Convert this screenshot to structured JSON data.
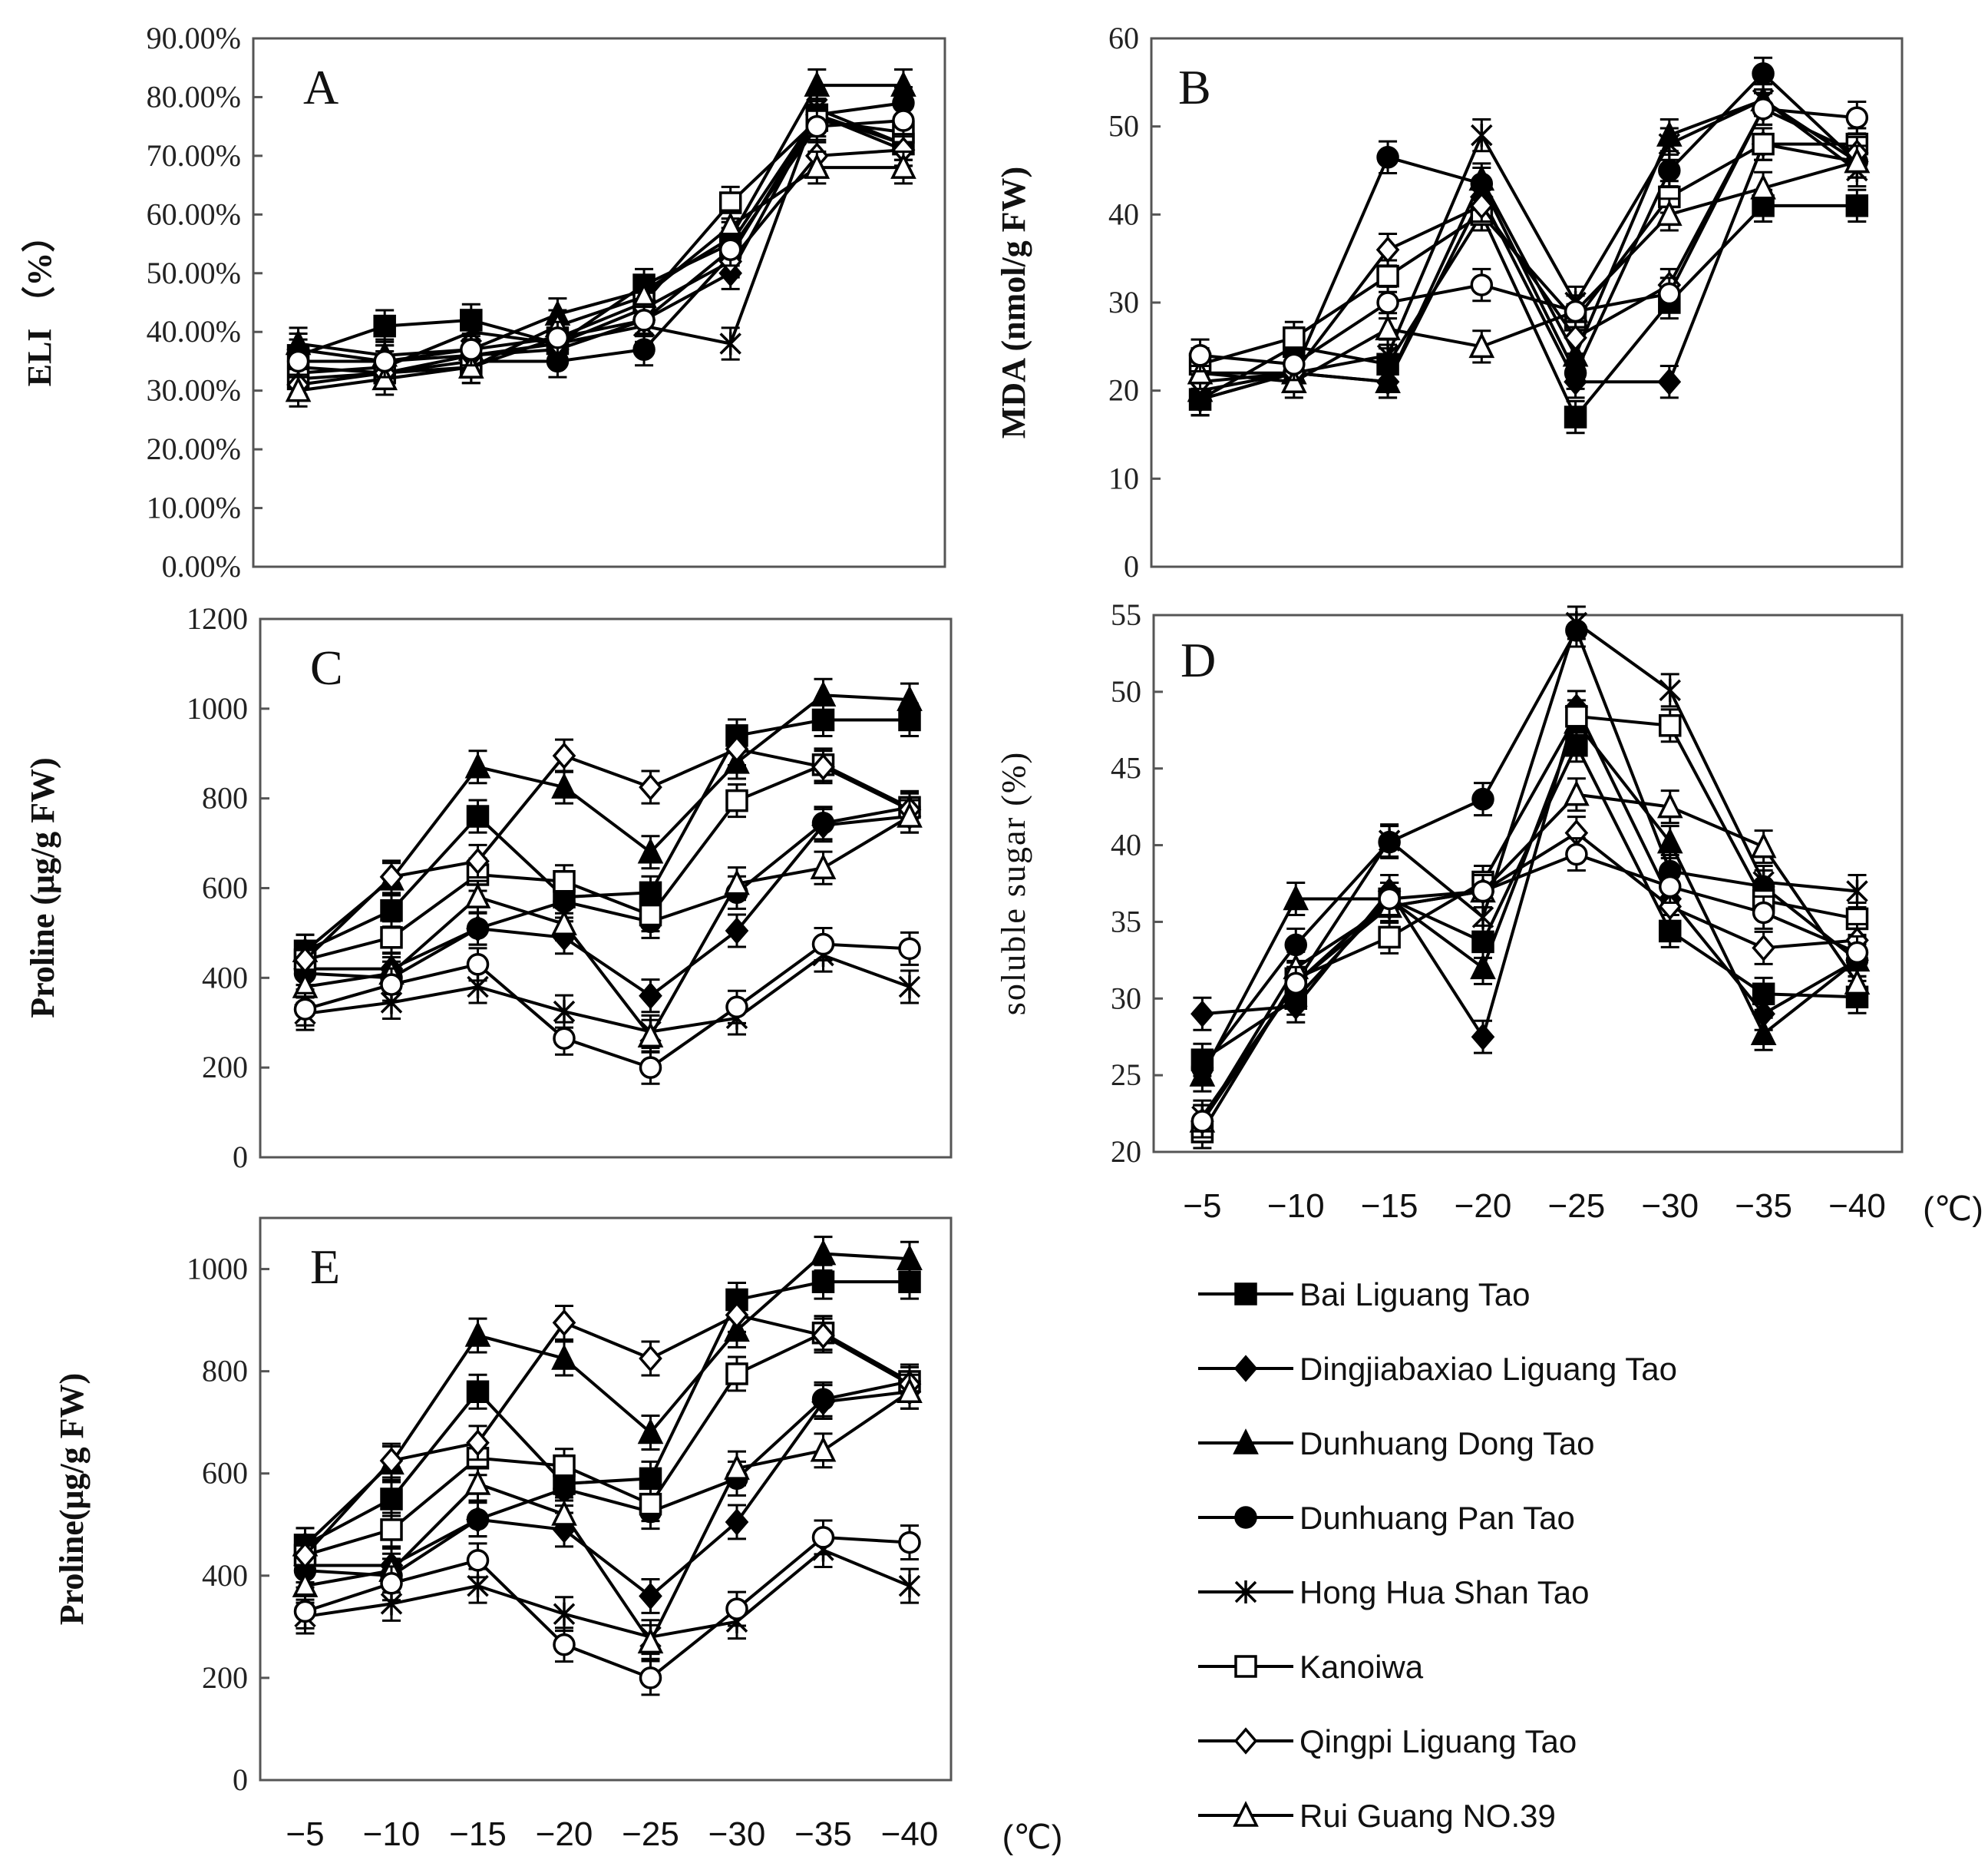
{
  "legend": [
    "Bai Liguang Tao",
    "Dingjiabaxiao Liguang Tao",
    "Dunhuang Dong Tao",
    "Dunhuang Pan Tao",
    "Hong Hua Shan Tao",
    "Kanoiwa",
    "Qingpi Liguang Tao",
    "Rui Guang NO.39"
  ],
  "x_unit": "(℃)",
  "chart_data": [
    {
      "panel": "A",
      "type": "line",
      "ylabel": "ELI （%）",
      "ylim": [
        0,
        90
      ],
      "x": [
        -5,
        -10,
        -15,
        -20,
        -25,
        -30,
        -35,
        -40
      ],
      "xtick_labels": [
        "−5",
        "−10",
        "−15",
        "−20",
        "−25",
        "−30",
        "−35",
        "−40"
      ],
      "yticks": [
        0,
        10,
        20,
        30,
        40,
        50,
        60,
        70,
        80,
        90
      ],
      "ytick_labels": [
        "0.00%",
        "10.00%",
        "20.00%",
        "30.00%",
        "40.00%",
        "50.00%",
        "60.00%",
        "70.00%",
        "80.00%",
        "90.00%"
      ],
      "series": [
        {
          "name": "Bai Liguang Tao",
          "marker": "square-filled",
          "values": [
            36,
            41,
            42,
            38,
            48,
            55,
            77,
            72
          ]
        },
        {
          "name": "Dingjiabaxiao Liguang Tao",
          "marker": "diamond-filled",
          "values": [
            37,
            35,
            36,
            37,
            42,
            50,
            77,
            71
          ]
        },
        {
          "name": "Dunhuang Dong Tao",
          "marker": "triangle-filled",
          "values": [
            38,
            36,
            37,
            43,
            47,
            56,
            82,
            82
          ]
        },
        {
          "name": "Dunhuang Pan Tao",
          "marker": "circle-filled",
          "values": [
            34,
            33,
            35,
            35,
            37,
            53,
            77,
            79
          ]
        },
        {
          "name": "Hong Hua Shan Tao",
          "marker": "star",
          "values": [
            33,
            34,
            40,
            38,
            41,
            38,
            78,
            72
          ]
        },
        {
          "name": "Kanoiwa",
          "marker": "square-open",
          "values": [
            32,
            33,
            34,
            39,
            45,
            62,
            76,
            74
          ]
        },
        {
          "name": "Qingpi Liguang Tao",
          "marker": "diamond-open",
          "values": [
            31,
            33,
            36,
            38,
            44,
            52,
            70,
            71
          ]
        },
        {
          "name": "Rui Guang NO.39",
          "marker": "triangle-open",
          "values": [
            30,
            32,
            34,
            41,
            46,
            58,
            68,
            68
          ]
        },
        {
          "name": "",
          "marker": "circle-open",
          "values": [
            35,
            35,
            37,
            39,
            42,
            54,
            75,
            76
          ]
        }
      ]
    },
    {
      "panel": "B",
      "type": "line",
      "ylabel": "MDA (nmol/g FW)",
      "ylim": [
        0,
        60
      ],
      "x": [
        -5,
        -10,
        -15,
        -20,
        -25,
        -30,
        -35,
        -40
      ],
      "yticks": [
        0,
        10,
        20,
        30,
        40,
        50,
        60
      ],
      "ytick_labels": [
        "0",
        "10",
        "20",
        "30",
        "40",
        "50",
        "60"
      ],
      "series": [
        {
          "name": "Bai Liguang Tao",
          "marker": "square-filled",
          "values": [
            19,
            25,
            23,
            40,
            17,
            30,
            41,
            41
          ]
        },
        {
          "name": "Dingjiabaxiao Liguang Tao",
          "marker": "diamond-filled",
          "values": [
            19,
            22,
            21,
            42,
            21,
            21,
            48,
            46
          ]
        },
        {
          "name": "Dunhuang Dong Tao",
          "marker": "triangle-filled",
          "values": [
            20,
            22,
            21,
            44,
            24,
            49,
            53,
            46
          ]
        },
        {
          "name": "Dunhuang Pan Tao",
          "marker": "circle-filled",
          "values": [
            19,
            22,
            46.5,
            43.5,
            22,
            45,
            56,
            46
          ]
        },
        {
          "name": "Hong Hua Shan Tao",
          "marker": "star",
          "values": [
            22,
            22,
            24,
            49,
            30,
            48,
            53,
            45
          ]
        },
        {
          "name": "Kanoiwa",
          "marker": "square-open",
          "values": [
            23,
            26,
            33,
            40,
            28,
            42,
            48,
            48
          ]
        },
        {
          "name": "Qingpi Liguang Tao",
          "marker": "diamond-open",
          "values": [
            21,
            22,
            36,
            41,
            26,
            32,
            52,
            47
          ]
        },
        {
          "name": "Rui Guang NO.39",
          "marker": "triangle-open",
          "values": [
            22,
            21,
            27,
            25,
            29,
            40,
            43,
            46
          ]
        },
        {
          "name": "",
          "marker": "circle-open",
          "values": [
            24,
            23,
            30,
            32,
            29,
            31,
            52,
            51
          ]
        }
      ]
    },
    {
      "panel": "C",
      "type": "line",
      "ylabel": "Proline (μg/g FW)",
      "ylim": [
        0,
        1200
      ],
      "x": [
        -5,
        -10,
        -15,
        -20,
        -25,
        -30,
        -35,
        -40
      ],
      "yticks": [
        0,
        200,
        400,
        600,
        800,
        1000,
        1200
      ],
      "ytick_labels": [
        "0",
        "200",
        "400",
        "600",
        "800",
        "1000",
        "1200"
      ],
      "series": [
        {
          "name": "Bai Liguang Tao",
          "marker": "square-filled",
          "values": [
            460,
            550,
            760,
            580,
            590,
            940,
            975,
            975
          ]
        },
        {
          "name": "Dingjiabaxiao Liguang Tao",
          "marker": "diamond-filled",
          "values": [
            420,
            420,
            510,
            490,
            360,
            505,
            740,
            760
          ]
        },
        {
          "name": "Dunhuang Dong Tao",
          "marker": "triangle-filled",
          "values": [
            460,
            620,
            870,
            825,
            680,
            880,
            1030,
            1020
          ]
        },
        {
          "name": "Dunhuang Pan Tao",
          "marker": "circle-filled",
          "values": [
            410,
            400,
            510,
            570,
            525,
            590,
            745,
            780
          ]
        },
        {
          "name": "Hong Hua Shan Tao",
          "marker": "star",
          "values": [
            320,
            345,
            380,
            325,
            280,
            310,
            450,
            380
          ]
        },
        {
          "name": "Kanoiwa",
          "marker": "square-open",
          "values": [
            440,
            490,
            630,
            615,
            540,
            795,
            875,
            780
          ]
        },
        {
          "name": "Qingpi Liguang Tao",
          "marker": "diamond-open",
          "values": [
            440,
            625,
            660,
            895,
            825,
            910,
            870,
            775
          ]
        },
        {
          "name": "Rui Guang NO.39",
          "marker": "triangle-open",
          "values": [
            380,
            410,
            580,
            520,
            270,
            610,
            645,
            760
          ]
        },
        {
          "name": "",
          "marker": "circle-open",
          "values": [
            330,
            385,
            430,
            265,
            200,
            335,
            475,
            465
          ]
        }
      ]
    },
    {
      "panel": "D",
      "type": "line",
      "ylabel": "soluble sugar (%)",
      "ylim": [
        20,
        55
      ],
      "x": [
        -5,
        -10,
        -15,
        -20,
        -25,
        -30,
        -35,
        -40
      ],
      "xtick_labels": [
        "−5",
        "−10",
        "−15",
        "−20",
        "−25",
        "−30",
        "−35",
        "−40"
      ],
      "yticks": [
        20,
        25,
        30,
        35,
        40,
        45,
        50,
        55
      ],
      "ytick_labels": [
        "20",
        "25",
        "30",
        "35",
        "40",
        "45",
        "50",
        "55"
      ],
      "series": [
        {
          "name": "Bai Liguang Tao",
          "marker": "square-filled",
          "values": [
            26,
            30,
            36.5,
            33.7,
            46.5,
            34.4,
            30.3,
            30.1
          ]
        },
        {
          "name": "Dingjiabaxiao Liguang Tao",
          "marker": "diamond-filled",
          "values": [
            29,
            29.5,
            37,
            27.5,
            49,
            36.5,
            29,
            32.5
          ]
        },
        {
          "name": "Dunhuang Dong Tao",
          "marker": "triangle-filled",
          "values": [
            25,
            36.5,
            36.5,
            32,
            48,
            40.2,
            27.7,
            32.5
          ]
        },
        {
          "name": "Dunhuang Pan Tao",
          "marker": "circle-filled",
          "values": [
            25.5,
            33.5,
            40.2,
            43,
            54,
            38.3,
            37.3,
            32.5
          ]
        },
        {
          "name": "Hong Hua Shan Tao",
          "marker": "star",
          "values": [
            22.3,
            31,
            40.3,
            35.3,
            54.5,
            50.1,
            37.6,
            37
          ]
        },
        {
          "name": "Kanoiwa",
          "marker": "square-open",
          "values": [
            21.3,
            31.3,
            34,
            37.6,
            48.4,
            47.8,
            36.4,
            35.2
          ]
        },
        {
          "name": "Qingpi Liguang Tao",
          "marker": "diamond-open",
          "values": [
            22,
            31,
            36,
            37,
            40.8,
            36,
            33.3,
            33.8
          ]
        },
        {
          "name": "Rui Guang NO.39",
          "marker": "triangle-open",
          "values": [
            22,
            32,
            36,
            37,
            43.3,
            42.5,
            39.9,
            31
          ]
        },
        {
          "name": "",
          "marker": "circle-open",
          "values": [
            22,
            31,
            36.5,
            37,
            39.4,
            37.3,
            35.6,
            33
          ]
        }
      ]
    },
    {
      "panel": "E",
      "type": "line",
      "ylabel": "Proline(μg/g FW)",
      "ylim": [
        0,
        1100
      ],
      "x": [
        -5,
        -10,
        -15,
        -20,
        -25,
        -30,
        -35,
        -40
      ],
      "xtick_labels": [
        "−5",
        "−10",
        "−15",
        "−20",
        "−25",
        "−30",
        "−35",
        "−40"
      ],
      "yticks": [
        0,
        200,
        400,
        600,
        800,
        1000
      ],
      "ytick_labels": [
        "0",
        "200",
        "400",
        "600",
        "800",
        "1000"
      ],
      "series": [
        {
          "name": "Bai Liguang Tao",
          "marker": "square-filled",
          "values": [
            460,
            550,
            760,
            580,
            590,
            940,
            975,
            975
          ]
        },
        {
          "name": "Dingjiabaxiao Liguang Tao",
          "marker": "diamond-filled",
          "values": [
            420,
            420,
            510,
            490,
            360,
            505,
            740,
            760
          ]
        },
        {
          "name": "Dunhuang Dong Tao",
          "marker": "triangle-filled",
          "values": [
            460,
            620,
            870,
            825,
            680,
            880,
            1030,
            1020
          ]
        },
        {
          "name": "Dunhuang Pan Tao",
          "marker": "circle-filled",
          "values": [
            410,
            400,
            510,
            570,
            525,
            590,
            745,
            780
          ]
        },
        {
          "name": "Hong Hua Shan Tao",
          "marker": "star",
          "values": [
            320,
            345,
            380,
            325,
            280,
            310,
            450,
            380
          ]
        },
        {
          "name": "Kanoiwa",
          "marker": "square-open",
          "values": [
            440,
            490,
            630,
            615,
            540,
            795,
            875,
            780
          ]
        },
        {
          "name": "Qingpi Liguang Tao",
          "marker": "diamond-open",
          "values": [
            440,
            625,
            660,
            895,
            825,
            910,
            870,
            775
          ]
        },
        {
          "name": "Rui Guang NO.39",
          "marker": "triangle-open",
          "values": [
            380,
            410,
            580,
            520,
            270,
            610,
            645,
            760
          ]
        },
        {
          "name": "",
          "marker": "circle-open",
          "values": [
            330,
            385,
            430,
            265,
            200,
            335,
            475,
            465
          ]
        }
      ]
    }
  ]
}
